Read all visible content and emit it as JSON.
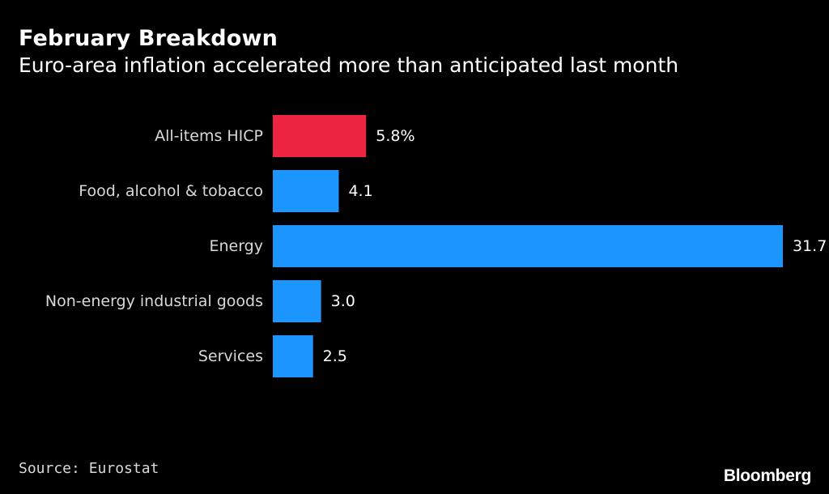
{
  "header": {
    "title": "February Breakdown",
    "subtitle": "Euro-area inflation accelerated more than anticipated last month"
  },
  "footer": {
    "source": "Source: Eurostat",
    "logo": "Bloomberg"
  },
  "colors": {
    "background": "#000000",
    "highlight": "#ec2341",
    "bar": "#1c95ff",
    "text": "#ffffff",
    "muted": "#d9d9d9"
  },
  "chart_data": {
    "type": "bar",
    "orientation": "horizontal",
    "categories": [
      "All-items HICP",
      "Food, alcohol & tobacco",
      "Energy",
      "Non-energy industrial goods",
      "Services"
    ],
    "values": [
      5.8,
      4.1,
      31.7,
      3.0,
      2.5
    ],
    "value_labels": [
      "5.8%",
      "4.1",
      "31.7",
      "3.0",
      "2.5"
    ],
    "highlight_index": 0,
    "xlim": [
      0,
      31.7
    ],
    "grid": false,
    "legend": "none"
  }
}
